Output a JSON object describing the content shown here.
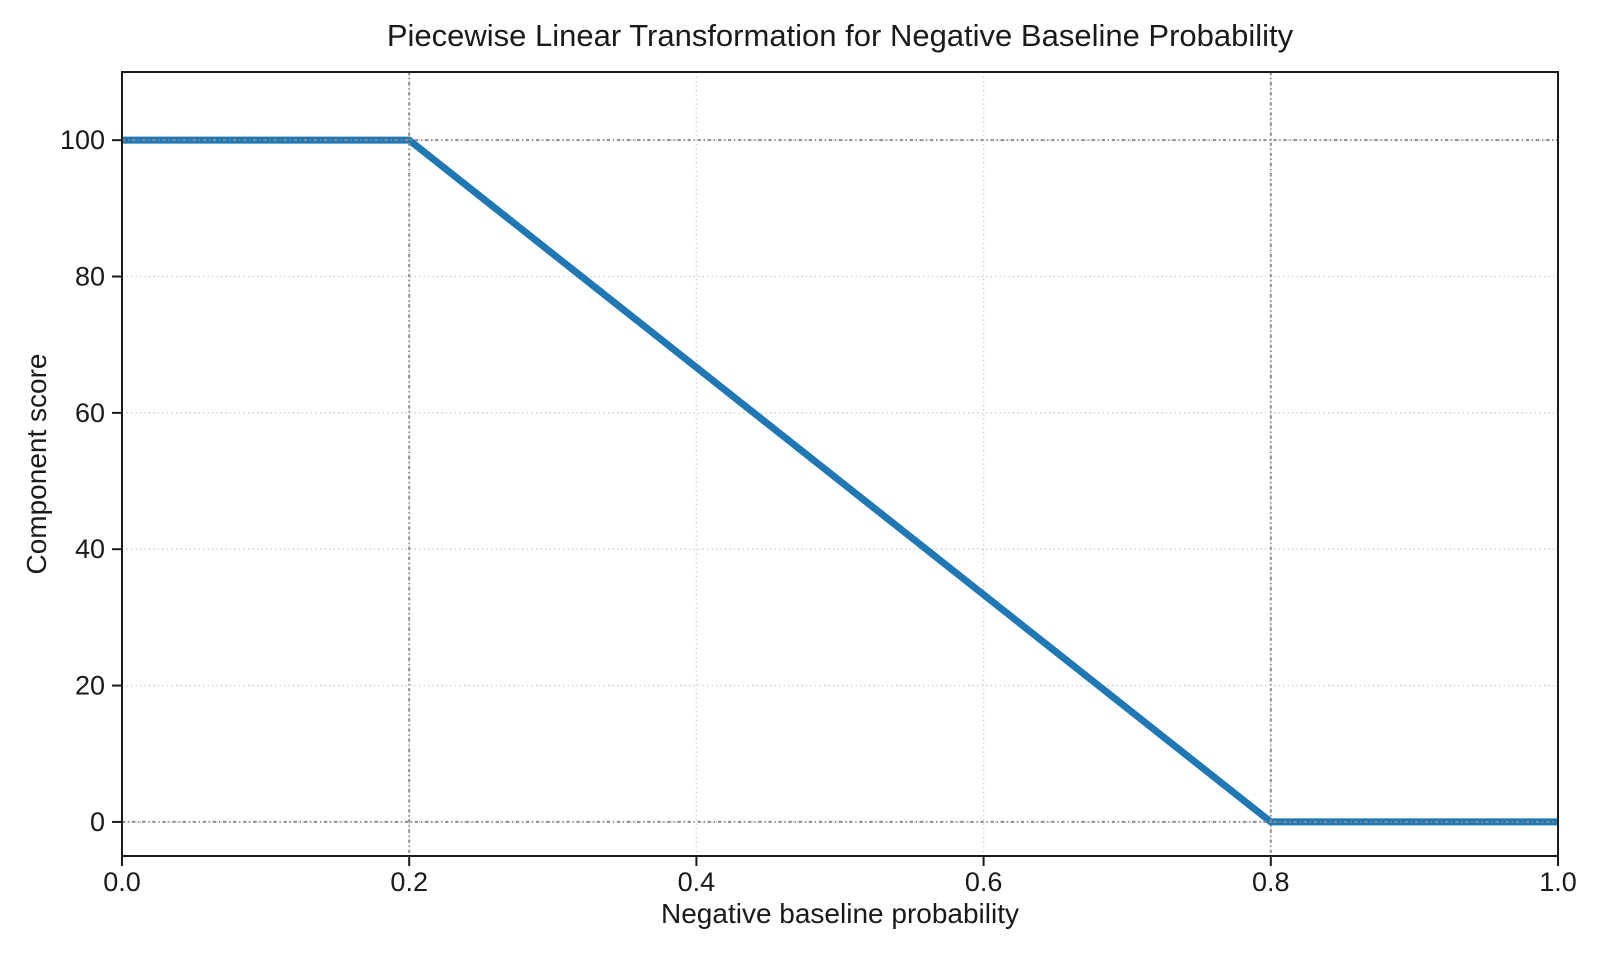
{
  "figure": {
    "background": "#ffffff",
    "text_color": "#1a1a1a"
  },
  "chart_data": {
    "type": "line",
    "title": "Piecewise Linear Transformation for Negative Baseline Probability",
    "xlabel": "Negative baseline probability",
    "ylabel": "Component score",
    "xlim": [
      0.0,
      1.0
    ],
    "ylim": [
      -5,
      110
    ],
    "x_ticks": [
      0.0,
      0.2,
      0.4,
      0.6,
      0.8,
      1.0
    ],
    "x_tick_labels": [
      "0.0",
      "0.2",
      "0.4",
      "0.6",
      "0.8",
      "1.0"
    ],
    "y_ticks": [
      0,
      20,
      40,
      60,
      80,
      100
    ],
    "y_tick_labels": [
      "0",
      "20",
      "40",
      "60",
      "80",
      "100"
    ],
    "grid": true,
    "legend": false,
    "series": [
      {
        "name": "component_score",
        "color": "#1f77b4",
        "line_width": 7,
        "points": [
          [
            0.0,
            100
          ],
          [
            0.2,
            100
          ],
          [
            0.8,
            0
          ],
          [
            1.0,
            0
          ]
        ]
      }
    ],
    "reference_lines": {
      "x": [
        0.2,
        0.8
      ],
      "y": [
        0,
        100
      ],
      "color": "#8c8c8c"
    },
    "grid_color": "#cbcbcb",
    "axis_color": "#1a1a1a"
  }
}
